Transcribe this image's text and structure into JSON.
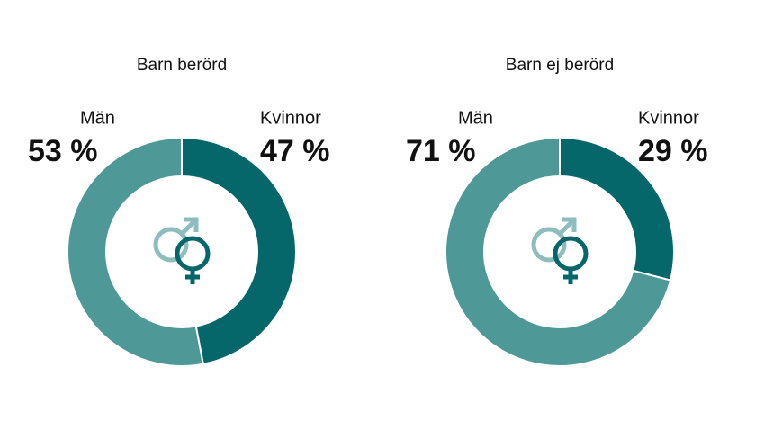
{
  "chart_data": [
    {
      "type": "pie",
      "title": "Barn berörd",
      "categories": [
        "Män",
        "Kvinnor"
      ],
      "values": [
        53,
        47
      ],
      "value_labels": [
        "53 %",
        "47 %"
      ],
      "colors": [
        "#4f9898",
        "#05676a"
      ]
    },
    {
      "type": "pie",
      "title": "Barn ej berörd",
      "categories": [
        "Män",
        "Kvinnor"
      ],
      "values": [
        71,
        29
      ],
      "value_labels": [
        "71 %",
        "29 %"
      ],
      "colors": [
        "#4f9898",
        "#05676a"
      ]
    }
  ]
}
